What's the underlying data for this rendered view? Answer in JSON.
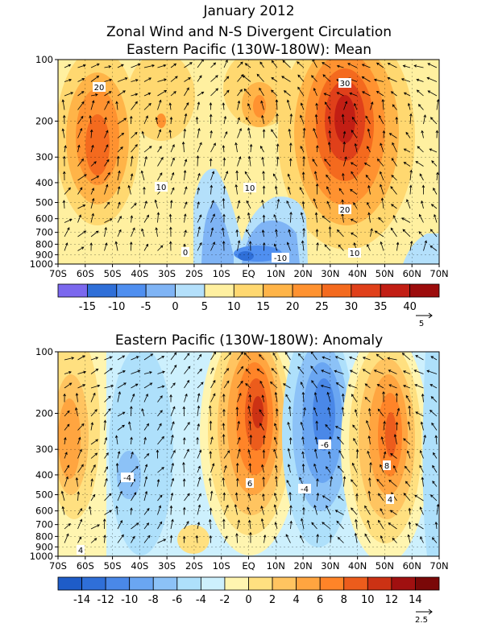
{
  "page": {
    "title_line1": "January 2012",
    "title_line2": "Zonal Wind and N-S Divergent Circulation"
  },
  "chart_data": [
    {
      "type": "heatmap",
      "title": "Eastern Pacific (130W-180W): Mean",
      "x_ticks": [
        "70S",
        "60S",
        "50S",
        "40S",
        "30S",
        "20S",
        "10S",
        "EQ",
        "10N",
        "20N",
        "30N",
        "40N",
        "50N",
        "60N",
        "70N"
      ],
      "y_ticks": [
        "100",
        "200",
        "300",
        "400",
        "500",
        "600",
        "700",
        "800",
        "900",
        "1000"
      ],
      "y_values": [
        100,
        200,
        300,
        400,
        500,
        600,
        700,
        800,
        900,
        1000
      ],
      "y_scale": "log",
      "xlim": [
        -70,
        70
      ],
      "ylim": [
        1000,
        100
      ],
      "contour_labels": [
        "20",
        "30",
        "10",
        "10",
        "20",
        "0",
        "-10",
        "10"
      ],
      "colorbar": {
        "labels": [
          "-15",
          "-10",
          "-5",
          "0",
          "5",
          "10",
          "15",
          "20",
          "25",
          "30",
          "35",
          "40"
        ],
        "colors": [
          "#7b68ee",
          "#2f6fd8",
          "#4f8ff0",
          "#7fb4f5",
          "#b4e0fb",
          "#fff0a0",
          "#ffd870",
          "#ffb448",
          "#ff9230",
          "#f46a1e",
          "#e0401a",
          "#c21e14",
          "#9c0c0c"
        ]
      },
      "vector_reference": "5",
      "grid": true
    },
    {
      "type": "heatmap",
      "title": "Eastern Pacific (130W-180W): Anomaly",
      "x_ticks": [
        "70S",
        "60S",
        "50S",
        "40S",
        "30S",
        "20S",
        "10S",
        "EQ",
        "10N",
        "20N",
        "30N",
        "40N",
        "50N",
        "60N",
        "70N"
      ],
      "y_ticks": [
        "100",
        "200",
        "300",
        "400",
        "500",
        "600",
        "700",
        "800",
        "900",
        "1000"
      ],
      "y_values": [
        100,
        200,
        300,
        400,
        500,
        600,
        700,
        800,
        900,
        1000
      ],
      "y_scale": "log",
      "xlim": [
        -70,
        70
      ],
      "ylim": [
        1000,
        100
      ],
      "contour_labels": [
        "-4",
        "6",
        "-6",
        "-4",
        "8",
        "4",
        "4"
      ],
      "colorbar": {
        "labels": [
          "-14",
          "-12",
          "-10",
          "-8",
          "-6",
          "-4",
          "-2",
          "0",
          "2",
          "4",
          "6",
          "8",
          "10",
          "12",
          "14"
        ],
        "colors": [
          "#1e5cc8",
          "#2f6fd8",
          "#4a88e8",
          "#6aa6f2",
          "#8cc2f7",
          "#aee0fb",
          "#cdf0fd",
          "#fff5b0",
          "#ffe080",
          "#ffc460",
          "#ffa540",
          "#ff8428",
          "#ec5c1c",
          "#cc3214",
          "#a01010",
          "#7a0808"
        ]
      },
      "vector_reference": "2.5",
      "grid": true
    }
  ]
}
